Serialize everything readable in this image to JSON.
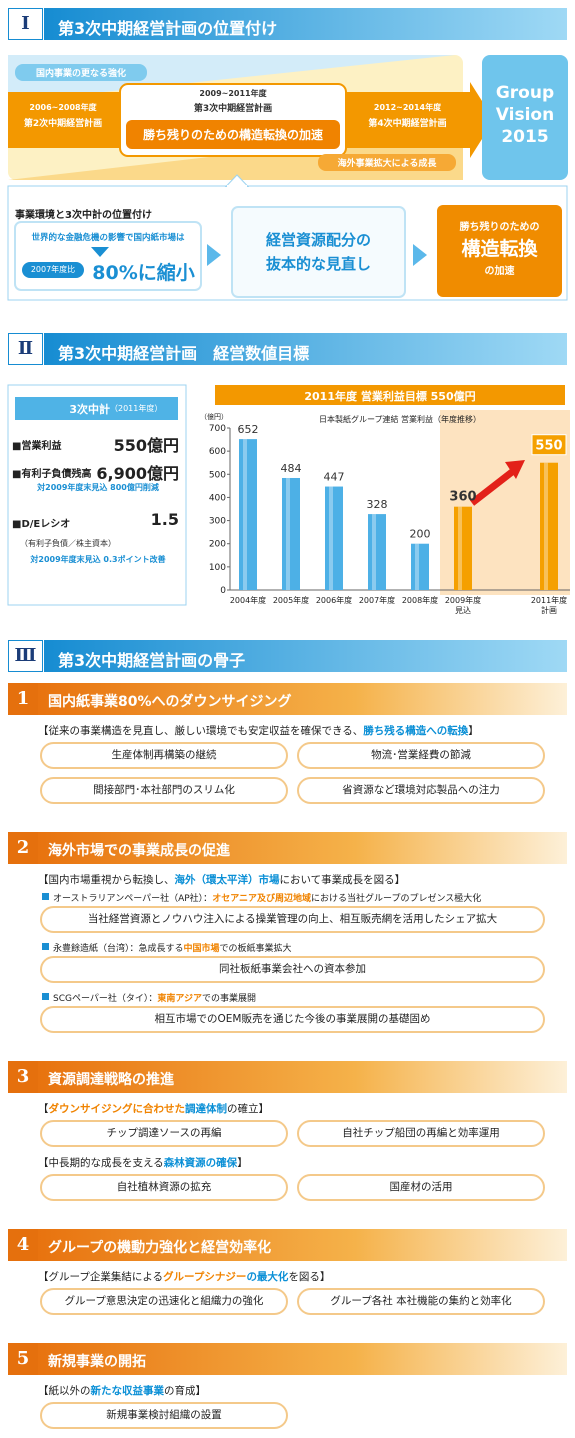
{
  "sections": [
    {
      "numeral": "Ⅰ",
      "title": "第3次中期経営計画の位置付け"
    },
    {
      "numeral": "Ⅱ",
      "title": "第3次中期経営計画　経営数値目標"
    },
    {
      "numeral": "Ⅲ",
      "title": "第3次中期経営計画の骨子"
    }
  ],
  "positioning": {
    "domestic": "国内事業の更なる強化",
    "plans": [
      {
        "years": "2006~2008年度",
        "name": "第2次中期経営計画"
      },
      {
        "years": "2009~2011年度",
        "name": "第3次中期経営計画"
      },
      {
        "years": "2012~2014年度",
        "name": "第4次中期経営計画"
      }
    ],
    "current_theme": "勝ち残りのための構造転換の加速",
    "overseas": "海外事業拡大による成長",
    "vision": "Group\nVision\n2015"
  },
  "environment": {
    "title": "事業環境と3次中計の位置付け",
    "cause": "世界的な金融危機の影響で国内紙市場は",
    "badge": "2007年度比",
    "result": "80%に縮小",
    "review": "経営資源配分の\n抜本的な見直し",
    "goal": [
      "勝ち残りのための",
      "構造転換",
      "の加速"
    ]
  },
  "targets": {
    "title": "3次中計",
    "period": "（2011年度）",
    "rows": [
      {
        "label": "■営業利益",
        "value": "550億円"
      },
      {
        "label": "■有利子負債残高",
        "value": "6,900億円",
        "note": "対2009年度末見込 800億円削減"
      },
      {
        "label": "■D/Eレシオ",
        "value": "1.5",
        "detail": "（有利子負債／株主資本）",
        "note": "対2009年度末見込 0.3ポイント改善"
      }
    ]
  },
  "chart_data": {
    "type": "bar",
    "title": "2011年度 営業利益目標 550億円",
    "subtitle": "日本製紙グループ連結 営業利益（年度推移）",
    "y_unit": "（億円）",
    "categories": [
      "2004年度",
      "2005年度",
      "2006年度",
      "2007年度",
      "2008年度",
      "2009年度\n見込",
      "2011年度\n計画"
    ],
    "values": [
      652,
      484,
      447,
      328,
      200,
      360,
      550
    ],
    "colors": [
      "#4db0e6",
      "#4db0e6",
      "#4db0e6",
      "#4db0e6",
      "#4db0e6",
      "#f5a000",
      "#f5a000"
    ],
    "ylim": [
      0,
      700
    ],
    "yticks": [
      0,
      100,
      200,
      300,
      400,
      500,
      600,
      700
    ]
  },
  "items": [
    {
      "number": "1",
      "title": "国内紙事業80%へのダウンサイジング",
      "groups": [
        {
          "lead": [
            {
              "text": "【従来の事業構造を見直し、厳しい環境でも安定収益を確保できる、"
            },
            {
              "text": "勝ち残る構造への転換",
              "color": "#0a8fd6"
            },
            {
              "text": "】"
            }
          ],
          "pills": [
            "生産体制再構築の継続",
            "物流･営業経費の節減",
            "間接部門･本社部門のスリム化",
            "省資源など環境対応製品への注力"
          ]
        }
      ]
    },
    {
      "number": "2",
      "title": "海外市場での事業成長の促進",
      "groups": [
        {
          "lead": [
            {
              "text": "【国内市場重視から転換し、"
            },
            {
              "text": "海外（環太平洋）市場",
              "color": "#0a8fd6"
            },
            {
              "text": "において事業成長を図る】"
            }
          ]
        },
        {
          "bullet": [
            {
              "text": "オーストラリアンペーパー社（AP社）："
            },
            {
              "text": "オセアニア及び周辺地域",
              "color": "#f08300"
            },
            {
              "text": "における当社グループのプレゼンス極大化"
            }
          ],
          "pills": [
            "当社経営資源とノウハウ注入による操業管理の向上、相互販売網を活用したシェア拡大"
          ]
        },
        {
          "bullet": [
            {
              "text": "永豊餘造紙（台湾）：急成長する"
            },
            {
              "text": "中国市場",
              "color": "#f08300"
            },
            {
              "text": "での板紙事業拡大"
            }
          ],
          "pills": [
            "同社板紙事業会社への資本参加"
          ]
        },
        {
          "bullet": [
            {
              "text": "SCGペーパー社（タイ）："
            },
            {
              "text": "東南アジア",
              "color": "#f08300"
            },
            {
              "text": "での事業展開"
            }
          ],
          "pills": [
            "相互市場でのOEM販売を通じた今後の事業展開の基礎固め"
          ]
        }
      ]
    },
    {
      "number": "3",
      "title": "資源調達戦略の推進",
      "groups": [
        {
          "lead": [
            {
              "text": "【"
            },
            {
              "text": "ダウンサイジングに合わせた",
              "color": "#f08300"
            },
            {
              "text": "調達体制",
              "color": "#0a8fd6"
            },
            {
              "text": "の確立】"
            }
          ],
          "pills": [
            "チップ調達ソースの再編",
            "自社チップ船団の再編と効率運用"
          ]
        },
        {
          "lead": [
            {
              "text": "【中長期的な成長を支える"
            },
            {
              "text": "森林資源の確保",
              "color": "#0a8fd6"
            },
            {
              "text": "】"
            }
          ],
          "pills": [
            "自社植林資源の拡充",
            "国産材の活用"
          ]
        }
      ]
    },
    {
      "number": "4",
      "title": "グループの機動力強化と経営効率化",
      "groups": [
        {
          "lead": [
            {
              "text": "【グループ企業集結による"
            },
            {
              "text": "グループシナジー",
              "color": "#f08300"
            },
            {
              "text": "の最大化",
              "color": "#0a8fd6"
            },
            {
              "text": "を図る】"
            }
          ],
          "pills": [
            "グループ意思決定の迅速化と組織力の強化",
            "グループ各社 本社機能の集約と効率化"
          ]
        }
      ]
    },
    {
      "number": "5",
      "title": "新規事業の開拓",
      "groups": [
        {
          "lead": [
            {
              "text": "【紙以外の"
            },
            {
              "text": "新たな収益事業",
              "color": "#0a8fd6"
            },
            {
              "text": "の育成】"
            }
          ],
          "pills": [
            "新規事業検討組織の設置"
          ]
        }
      ]
    }
  ]
}
